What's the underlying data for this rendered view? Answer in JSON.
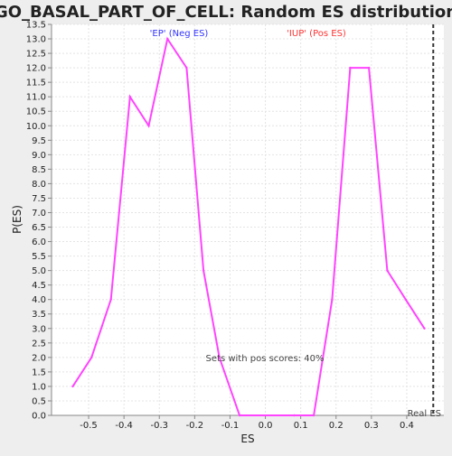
{
  "chart_data": {
    "type": "line",
    "title": "GO_BASAL_PART_OF_CELL: Random ES distribution",
    "xlabel": "ES",
    "ylabel": "P(ES)",
    "xlim": [
      -0.605,
      0.505
    ],
    "ylim": [
      0.0,
      13.5
    ],
    "x_ticks": [
      "-0.5",
      "-0.4",
      "-0.3",
      "-0.2",
      "-0.1",
      "0.0",
      "0.1",
      "0.2",
      "0.3",
      "0.4"
    ],
    "x_tick_values": [
      -0.5,
      -0.4,
      -0.3,
      -0.2,
      -0.1,
      0.0,
      0.1,
      0.2,
      0.3,
      0.4
    ],
    "y_ticks": [
      "0.0",
      "0.5",
      "1.0",
      "1.5",
      "2.0",
      "2.5",
      "3.0",
      "3.5",
      "4.0",
      "4.5",
      "5.0",
      "5.5",
      "6.0",
      "6.5",
      "7.0",
      "7.5",
      "8.0",
      "8.5",
      "9.0",
      "9.5",
      "10.0",
      "10.5",
      "11.0",
      "11.5",
      "12.0",
      "12.5",
      "13.0",
      "13.5"
    ],
    "y_tick_values": [
      0,
      0.5,
      1,
      1.5,
      2,
      2.5,
      3,
      3.5,
      4,
      4.5,
      5,
      5.5,
      6,
      6.5,
      7,
      7.5,
      8,
      8.5,
      9,
      9.5,
      10,
      10.5,
      11,
      11.5,
      12,
      12.5,
      13,
      13.5
    ],
    "grid": true,
    "series": [
      {
        "color": "#ff44ff",
        "x": [
          -0.545,
          -0.492,
          -0.437,
          -0.383,
          -0.33,
          -0.277,
          -0.223,
          -0.175,
          -0.13,
          -0.073,
          0.082,
          0.137,
          0.189,
          0.24,
          0.293,
          0.345,
          0.397,
          0.45
        ],
        "y": [
          1.0,
          2.0,
          4.0,
          11.0,
          10.0,
          13.0,
          12.0,
          5.0,
          2.0,
          0.0,
          0.0,
          0.0,
          4.0,
          12.0,
          12.0,
          5.0,
          4.0,
          3.0
        ]
      }
    ],
    "annotations": {
      "neg_label": "'EP' (Neg ES)",
      "neg_color": "#3333ff",
      "pos_label": "'IUP' (Pos ES)",
      "pos_color": "#ff3333",
      "center_note": "Sets with pos scores: 40%",
      "real_es_label": "Real ES",
      "real_es_x": 0.475
    }
  }
}
